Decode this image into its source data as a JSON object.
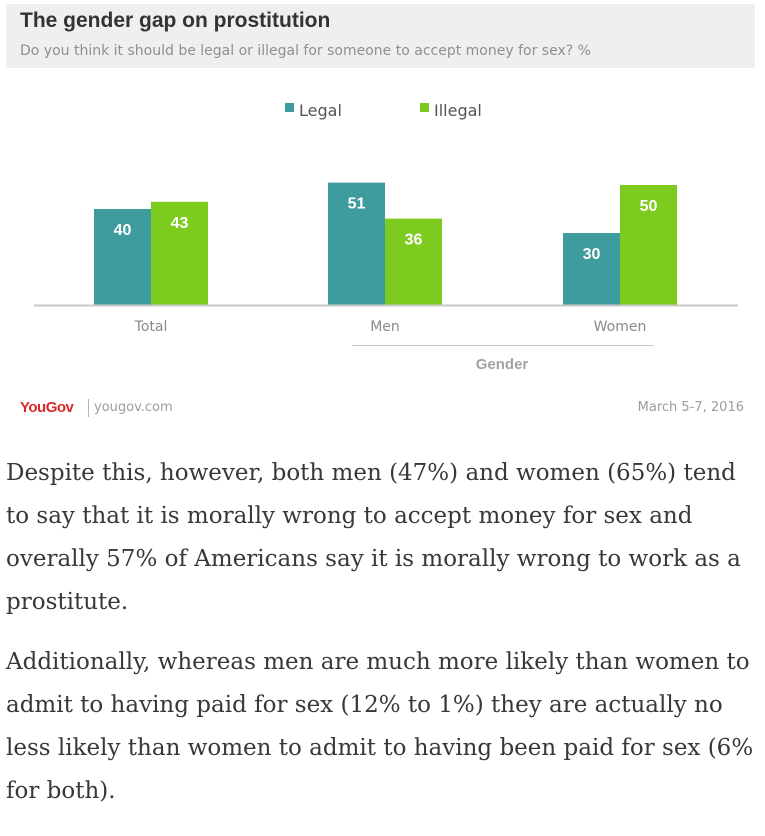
{
  "header": {
    "title": "The gender gap on prostitution",
    "subtitle": "Do you think it should be legal or illegal for someone to accept money for sex? %"
  },
  "chart_data": {
    "type": "bar",
    "categories": [
      "Total",
      "Men",
      "Women"
    ],
    "group_label": "Gender",
    "series": [
      {
        "name": "Legal",
        "color": "#3f9c9e",
        "values": [
          40,
          51,
          30
        ]
      },
      {
        "name": "Illegal",
        "color": "#7ecb1f",
        "values": [
          43,
          36,
          50
        ]
      }
    ],
    "legend_position": "top-center",
    "grid": false
  },
  "footer": {
    "logo": "YouGov",
    "site": "yougov.com",
    "date": "March 5-7, 2016"
  },
  "article": {
    "paragraphs": [
      "Despite this, however, both men (47%) and women (65%) tend to say that it is morally wrong to accept money for sex and overally 57% of Americans say it is morally wrong to work as a prostitute.",
      "Additionally, whereas men are much more likely than women to admit to having paid for sex (12% to 1%) they are actually no less likely than women to admit to having been paid for sex (6% for both)."
    ]
  }
}
